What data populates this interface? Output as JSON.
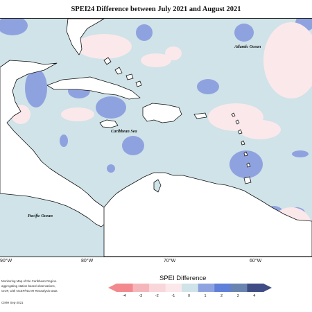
{
  "title": "SPEI24 Difference between July 2021 and August 2021",
  "labels": {
    "atlantic": "Atlantic Ocean",
    "caribbean": "Caribbean Sea",
    "pacific": "Pacific Ocean"
  },
  "longitudes": [
    "90°W",
    "80°W",
    "70°W",
    "60°W"
  ],
  "legend": {
    "title": "SPEI Difference",
    "ticks": [
      "-4",
      "-3",
      "-2",
      "-1",
      "0",
      "1",
      "2",
      "3",
      "4"
    ],
    "colors": [
      "#f2898f",
      "#f5b6bb",
      "#f9d6d9",
      "#fbe8ea",
      "#cfe3e8",
      "#8fa2e0",
      "#5f7fd8",
      "#6a84b0",
      "#3f4c86"
    ]
  },
  "credits": [
    "Monitoring Map of the Caribbean Region.",
    "aggregating station based observations,",
    "CIOF, with NCEP/NCAR Reanalysis Data",
    "CIMH Sep-2021"
  ],
  "colors": {
    "neutral": "#cfe3e8",
    "land": "#ffffff",
    "wet": "#8fa2e0",
    "dry": "#fbe8ea"
  }
}
